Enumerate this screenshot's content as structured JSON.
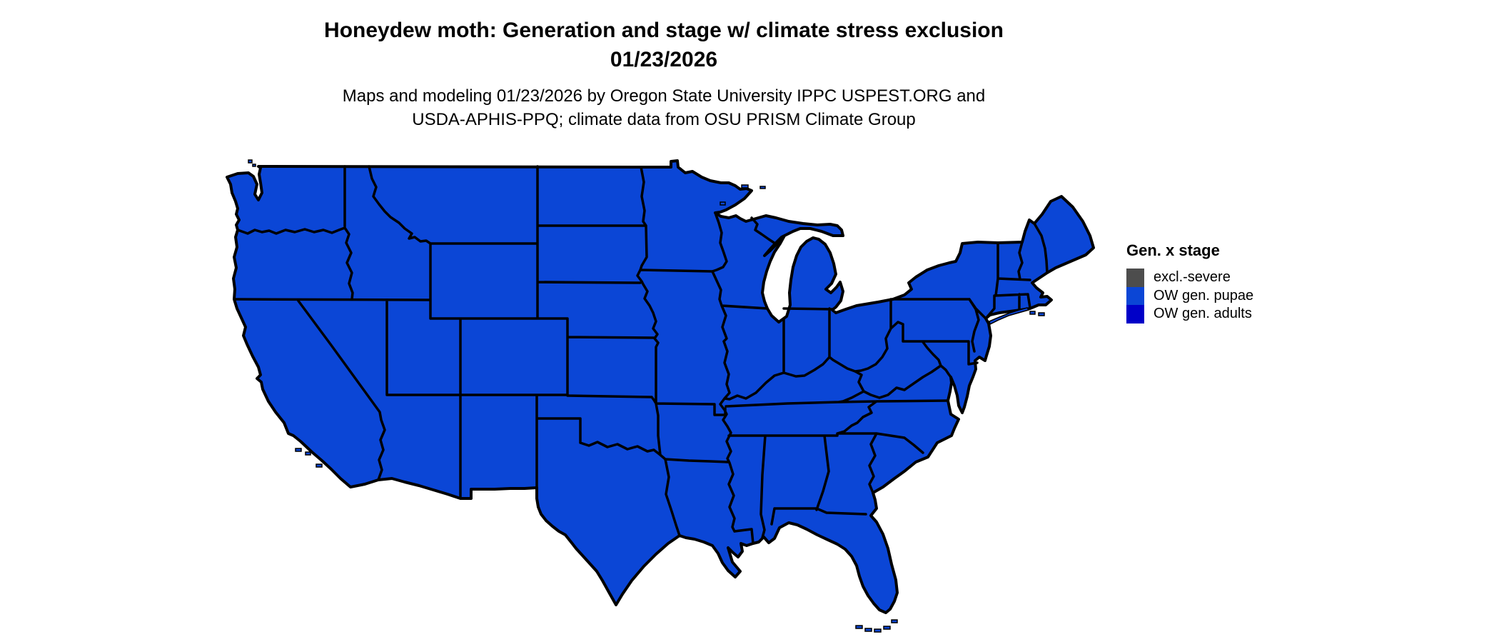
{
  "header": {
    "title_line1": "Honeydew moth: Generation and stage w/ climate stress exclusion",
    "title_line2": "01/23/2026",
    "subtitle_line1": "Maps and modeling 01/23/2026 by Oregon State University IPPC USPEST.ORG and",
    "subtitle_line2": "USDA-APHIS-PPQ; climate data from OSU PRISM Climate Group"
  },
  "legend": {
    "title": "Gen. x stage",
    "items": [
      {
        "label": "excl.-severe",
        "color": "#4d4d4d"
      },
      {
        "label": "OW gen. pupae",
        "color": "#0b46d6"
      },
      {
        "label": "OW gen. adults",
        "color": "#0000c8"
      }
    ]
  },
  "map": {
    "region": "Contiguous United States",
    "land_fill": "#0b46d6",
    "border_color": "#000000",
    "background": "#ffffff"
  }
}
